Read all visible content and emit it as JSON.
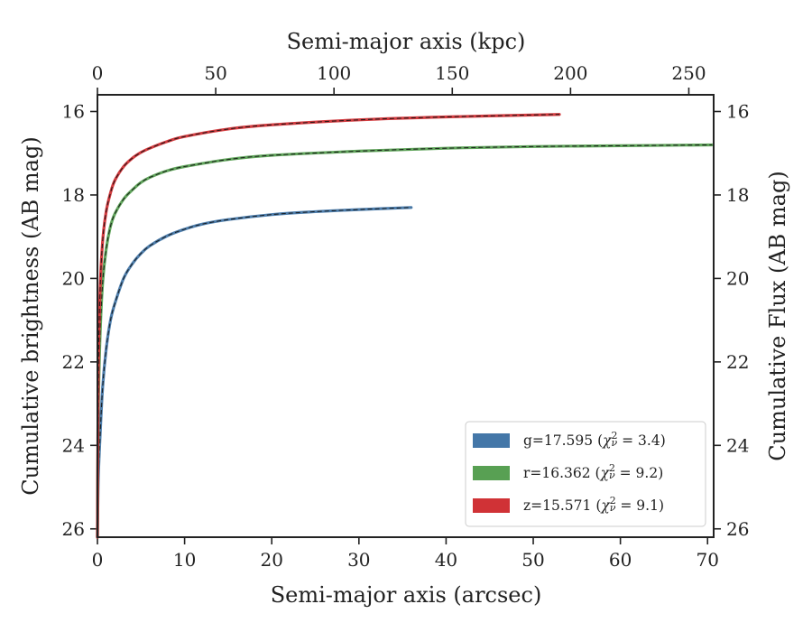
{
  "chart_data": {
    "type": "line",
    "title": "",
    "xlabel": "Semi-major axis (arcsec)",
    "x2label": "Semi-major axis (kpc)",
    "ylabel": "Cumulative brightness (AB mag)",
    "y2label": "Cumulative Flux (AB mag)",
    "xlim": [
      0,
      70.7
    ],
    "x2lim": [
      0,
      260.5
    ],
    "ylim": [
      26.2,
      15.6
    ],
    "y_inverted": true,
    "xticks": [
      0,
      10,
      20,
      30,
      40,
      50,
      60,
      70
    ],
    "x2ticks": [
      0,
      50,
      100,
      150,
      200,
      250
    ],
    "yticks": [
      16,
      18,
      20,
      22,
      24,
      26
    ],
    "grid": false,
    "legend_position": "lower-right",
    "series": [
      {
        "name": "g=17.595 (χ²ν = 3.4)",
        "label_prefix": "g=17.595 (",
        "label_chi": "χ",
        "label_sup": "2",
        "label_sub": "ν",
        "label_suffix": " = 3.4)",
        "color": "#4477a8",
        "x": [
          0,
          0.1,
          0.3,
          0.6,
          1,
          1.5,
          2,
          3,
          4,
          5,
          6,
          8,
          10,
          12,
          15,
          20,
          25,
          30,
          36
        ],
        "y": [
          26.2,
          24.8,
          23.8,
          22.6,
          21.7,
          21.0,
          20.6,
          20.0,
          19.65,
          19.4,
          19.22,
          18.98,
          18.82,
          18.7,
          18.59,
          18.47,
          18.4,
          18.35,
          18.3
        ]
      },
      {
        "name": "r=16.362 (χ²ν = 9.2)",
        "label_prefix": "r=16.362 (",
        "label_chi": "χ",
        "label_sup": "2",
        "label_sub": "ν",
        "label_suffix": " = 9.2)",
        "color": "#58a053",
        "x": [
          0,
          0.1,
          0.3,
          0.6,
          1,
          1.5,
          2,
          3,
          4,
          5,
          6,
          8,
          10,
          15,
          20,
          30,
          40,
          50,
          60,
          70.5
        ],
        "y": [
          26.2,
          23.2,
          21.4,
          20.1,
          19.3,
          18.75,
          18.45,
          18.1,
          17.88,
          17.7,
          17.58,
          17.42,
          17.32,
          17.15,
          17.05,
          16.95,
          16.88,
          16.84,
          16.82,
          16.8
        ]
      },
      {
        "name": "z=15.571 (χ²ν = 9.1)",
        "label_prefix": "z=15.571 (",
        "label_chi": "χ",
        "label_sup": "2",
        "label_sub": "ν",
        "label_suffix": " = 9.1)",
        "color": "#d03236",
        "x": [
          0,
          0.1,
          0.3,
          0.6,
          1,
          1.5,
          2,
          3,
          4,
          5,
          6,
          8,
          10,
          15,
          20,
          30,
          40,
          53
        ],
        "y": [
          26.2,
          22.3,
          20.3,
          19.1,
          18.4,
          17.95,
          17.65,
          17.32,
          17.12,
          16.98,
          16.88,
          16.72,
          16.6,
          16.42,
          16.32,
          16.2,
          16.13,
          16.07
        ]
      }
    ]
  }
}
